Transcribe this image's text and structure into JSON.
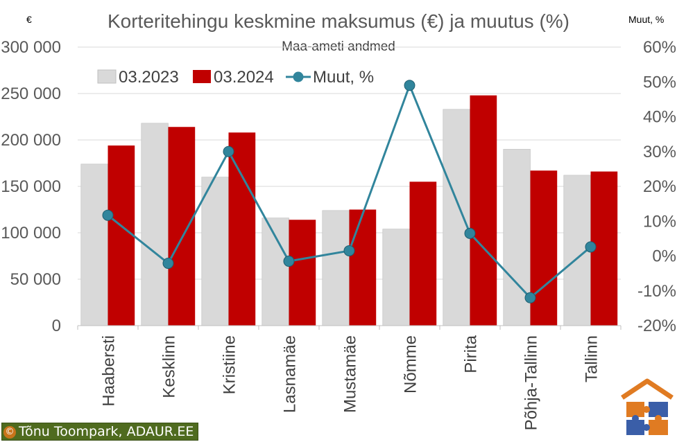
{
  "chart_data": {
    "type": "bar",
    "title": "Korteritehingu keskmine maksumus (€) ja muutus (%)",
    "subtitle": "Maa-ameti andmed",
    "left_axis_unit": "€",
    "right_axis_unit": "Muut, %",
    "categories": [
      "Haabersti",
      "Kesklinn",
      "Kristiine",
      "Lasnamäe",
      "Mustamäe",
      "Nõmme",
      "Pirita",
      "Põhja-Tallinn",
      "Tallinn"
    ],
    "series": [
      {
        "name": "03.2023",
        "kind": "bar",
        "color": "#d9d9d9",
        "values": [
          174000,
          218000,
          160000,
          116000,
          124000,
          104000,
          233000,
          190000,
          162000
        ]
      },
      {
        "name": "03.2024",
        "kind": "bar",
        "color": "#c00000",
        "values": [
          194000,
          214000,
          208000,
          114000,
          125000,
          155000,
          248000,
          167000,
          166000
        ]
      },
      {
        "name": "Muut, %",
        "kind": "line",
        "axis": "right",
        "color": "#31859c",
        "values": [
          11.7,
          -2.1,
          30.0,
          -1.5,
          1.5,
          49.0,
          6.5,
          -12.0,
          2.6
        ]
      }
    ],
    "ylim_left": [
      0,
      300000
    ],
    "ylim_right": [
      -20,
      60
    ],
    "yticks_left": [
      "0",
      "50 000",
      "100 000",
      "150 000",
      "200 000",
      "250 000",
      "300 000"
    ],
    "yticks_right": [
      "-20%",
      "-10%",
      "0%",
      "10%",
      "20%",
      "30%",
      "40%",
      "50%",
      "60%"
    ],
    "grid": true,
    "legend": "top-left"
  },
  "footer": {
    "copyright_symbol": "©",
    "copyright_text": "Tõnu Toompark, ADAUR.EE",
    "logo_icon": "puzzle-house-logo"
  }
}
